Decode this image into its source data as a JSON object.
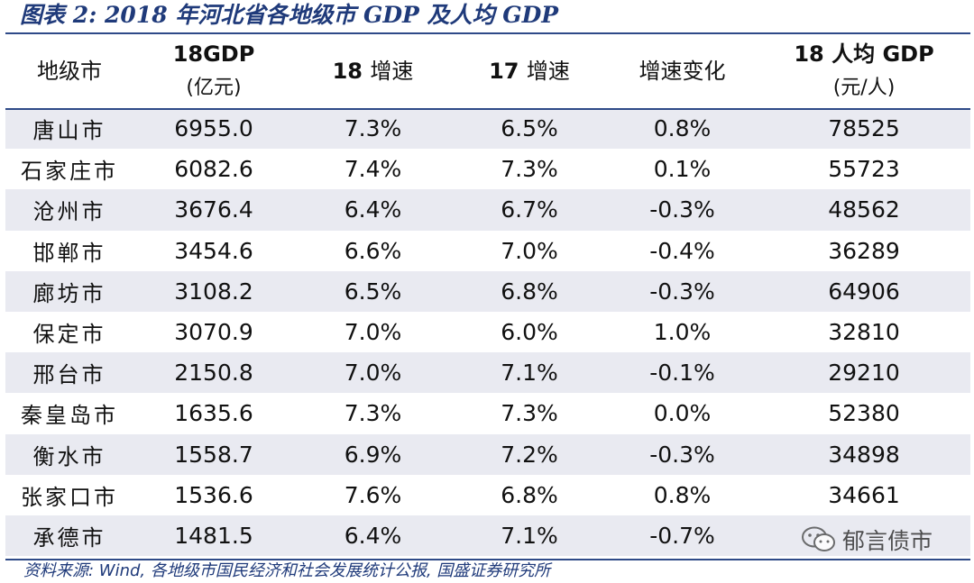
{
  "title": "图表 2:  2018 年河北省各地级市 GDP 及人均 GDP",
  "headers": {
    "city": "地级市",
    "gdp_line1": "18GDP",
    "gdp_line2": "(亿元)",
    "g18_num": "18",
    "g18_text": "增速",
    "g17_num": "17",
    "g17_text": "增速",
    "change": "增速变化",
    "pc_line1_num": "18",
    "pc_line1_text": "人均 GDP",
    "pc_line2": "(元/人)"
  },
  "rows": [
    {
      "city": "唐山市",
      "gdp": "6955.0",
      "g18": "7.3%",
      "g17": "6.5%",
      "change": "0.8%",
      "pc": "78525"
    },
    {
      "city": "石家庄市",
      "gdp": "6082.6",
      "g18": "7.4%",
      "g17": "7.3%",
      "change": "0.1%",
      "pc": "55723"
    },
    {
      "city": "沧州市",
      "gdp": "3676.4",
      "g18": "6.4%",
      "g17": "6.7%",
      "change": "-0.3%",
      "pc": "48562"
    },
    {
      "city": "邯郸市",
      "gdp": "3454.6",
      "g18": "6.6%",
      "g17": "7.0%",
      "change": "-0.4%",
      "pc": "36289"
    },
    {
      "city": "廊坊市",
      "gdp": "3108.2",
      "g18": "6.5%",
      "g17": "6.8%",
      "change": "-0.3%",
      "pc": "64906"
    },
    {
      "city": "保定市",
      "gdp": "3070.9",
      "g18": "7.0%",
      "g17": "6.0%",
      "change": "1.0%",
      "pc": "32810"
    },
    {
      "city": "邢台市",
      "gdp": "2150.8",
      "g18": "7.0%",
      "g17": "7.1%",
      "change": "-0.1%",
      "pc": "29210"
    },
    {
      "city": "秦皇岛市",
      "gdp": "1635.6",
      "g18": "7.3%",
      "g17": "7.3%",
      "change": "0.0%",
      "pc": "52380"
    },
    {
      "city": "衡水市",
      "gdp": "1558.7",
      "g18": "6.9%",
      "g17": "7.2%",
      "change": "-0.3%",
      "pc": "34898"
    },
    {
      "city": "张家口市",
      "gdp": "1536.6",
      "g18": "7.6%",
      "g17": "6.8%",
      "change": "0.8%",
      "pc": "34661"
    },
    {
      "city": "承德市",
      "gdp": "1481.5",
      "g18": "6.4%",
      "g17": "7.1%",
      "change": "-0.7%",
      "pc": ""
    }
  ],
  "source": "资料来源: Wind, 各地级市国民经济和社会发展统计公报, 国盛证券研究所",
  "watermark": "郁言债市",
  "colors": {
    "accent": "#1f3a7a",
    "stripe": "#e9eaf1"
  }
}
